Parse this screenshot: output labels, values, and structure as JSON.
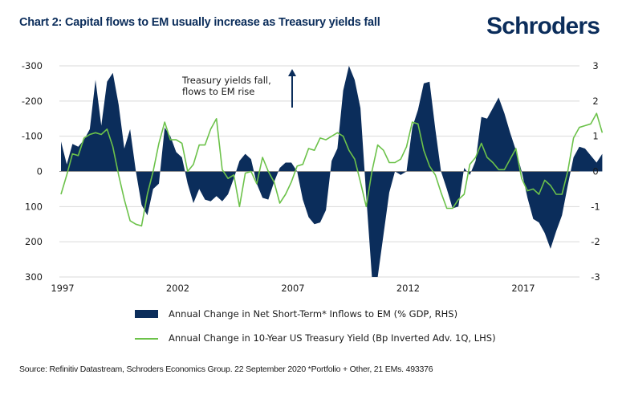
{
  "header": {
    "title": "Chart 2: Capital flows to EM usually increase as Treasury yields fall",
    "logo": "Schroders"
  },
  "source": "Source: Refinitiv Datastream, Schroders Economics Group. 22 September 2020 *Portfolio + Other, 21 EMs. 493376",
  "colors": {
    "area": "#0b2d5b",
    "line": "#6cc24a",
    "grid": "#d9d9d9",
    "title": "#0b2d5b"
  },
  "chart_data": {
    "type": "area+line",
    "title": "Chart 2: Capital flows to EM usually increase as Treasury yields fall",
    "x_ticks": [
      "1997",
      "2002",
      "2007",
      "2012",
      "2017"
    ],
    "x_range": [
      1997.0,
      2020.75
    ],
    "left_axis": {
      "label": "Bp (inverted)",
      "ticks": [
        "-300",
        "-200",
        "-100",
        "0",
        "100",
        "200",
        "300"
      ],
      "range": [
        -300,
        300
      ],
      "inverted": true
    },
    "right_axis": {
      "label": "% GDP",
      "ticks": [
        "3",
        "2",
        "1",
        "0",
        "-1",
        "-2",
        "-3"
      ],
      "range": [
        -3,
        3
      ]
    },
    "grid": true,
    "legend_position": "bottom",
    "annotation": {
      "lines": [
        "Treasury yields fall,",
        "flows to EM rise"
      ],
      "arrow": "up"
    },
    "series": [
      {
        "name": "Annual Change in Net Short-Term* Inflows to EM (% GDP, RHS)",
        "type": "area",
        "axis": "right",
        "points": [
          [
            1997.0,
            0.85
          ],
          [
            1997.25,
            0.2
          ],
          [
            1997.5,
            0.78
          ],
          [
            1997.75,
            0.7
          ],
          [
            1998.0,
            0.9
          ],
          [
            1998.25,
            1.2
          ],
          [
            1998.5,
            2.6
          ],
          [
            1998.75,
            1.3
          ],
          [
            1999.0,
            2.55
          ],
          [
            1999.25,
            2.8
          ],
          [
            1999.5,
            1.9
          ],
          [
            1999.75,
            0.65
          ],
          [
            2000.0,
            1.2
          ],
          [
            2000.25,
            0.0
          ],
          [
            2000.5,
            -0.95
          ],
          [
            2000.75,
            -1.25
          ],
          [
            2001.0,
            -0.5
          ],
          [
            2001.25,
            -0.35
          ],
          [
            2001.5,
            1.25
          ],
          [
            2001.75,
            1.0
          ],
          [
            2002.0,
            0.55
          ],
          [
            2002.25,
            0.4
          ],
          [
            2002.5,
            -0.35
          ],
          [
            2002.75,
            -0.9
          ],
          [
            2003.0,
            -0.5
          ],
          [
            2003.25,
            -0.8
          ],
          [
            2003.5,
            -0.85
          ],
          [
            2003.75,
            -0.7
          ],
          [
            2004.0,
            -0.85
          ],
          [
            2004.25,
            -0.65
          ],
          [
            2004.5,
            -0.2
          ],
          [
            2004.75,
            0.3
          ],
          [
            2005.0,
            0.5
          ],
          [
            2005.25,
            0.35
          ],
          [
            2005.5,
            -0.35
          ],
          [
            2005.75,
            -0.75
          ],
          [
            2006.0,
            -0.8
          ],
          [
            2006.25,
            -0.3
          ],
          [
            2006.5,
            0.1
          ],
          [
            2006.75,
            0.25
          ],
          [
            2007.0,
            0.25
          ],
          [
            2007.25,
            0.0
          ],
          [
            2007.5,
            -0.8
          ],
          [
            2007.75,
            -1.3
          ],
          [
            2008.0,
            -1.5
          ],
          [
            2008.25,
            -1.45
          ],
          [
            2008.5,
            -1.1
          ],
          [
            2008.75,
            0.3
          ],
          [
            2009.0,
            0.65
          ],
          [
            2009.25,
            2.3
          ],
          [
            2009.5,
            3.0
          ],
          [
            2009.75,
            2.6
          ],
          [
            2010.0,
            1.8
          ],
          [
            2010.25,
            -0.7
          ],
          [
            2010.5,
            -3.0
          ],
          [
            2010.75,
            -3.0
          ],
          [
            2011.0,
            -1.8
          ],
          [
            2011.25,
            -0.6
          ],
          [
            2011.5,
            0.0
          ],
          [
            2011.75,
            -0.1
          ],
          [
            2012.0,
            0.0
          ],
          [
            2012.25,
            1.25
          ],
          [
            2012.5,
            1.75
          ],
          [
            2012.75,
            2.5
          ],
          [
            2013.0,
            2.55
          ],
          [
            2013.25,
            1.2
          ],
          [
            2013.5,
            0.0
          ],
          [
            2013.75,
            -0.5
          ],
          [
            2014.0,
            -1.05
          ],
          [
            2014.25,
            -1.0
          ],
          [
            2014.5,
            0.1
          ],
          [
            2014.75,
            -0.1
          ],
          [
            2015.0,
            0.3
          ],
          [
            2015.25,
            1.55
          ],
          [
            2015.5,
            1.5
          ],
          [
            2015.75,
            1.8
          ],
          [
            2016.0,
            2.1
          ],
          [
            2016.25,
            1.65
          ],
          [
            2016.5,
            1.1
          ],
          [
            2016.75,
            0.6
          ],
          [
            2017.0,
            0.0
          ],
          [
            2017.25,
            -0.75
          ],
          [
            2017.5,
            -1.35
          ],
          [
            2017.75,
            -1.45
          ],
          [
            2018.0,
            -1.75
          ],
          [
            2018.25,
            -2.2
          ],
          [
            2018.5,
            -1.7
          ],
          [
            2018.75,
            -1.25
          ],
          [
            2019.0,
            -0.4
          ],
          [
            2019.25,
            0.4
          ],
          [
            2019.5,
            0.7
          ],
          [
            2019.75,
            0.65
          ],
          [
            2020.0,
            0.45
          ],
          [
            2020.25,
            0.25
          ],
          [
            2020.5,
            0.5
          ]
        ]
      },
      {
        "name": "Annual Change in 10-Year US Treasury Yield (Bp Inverted Adv. 1Q, LHS)",
        "type": "line",
        "axis": "left",
        "points": [
          [
            1997.0,
            65
          ],
          [
            1997.25,
            10
          ],
          [
            1997.5,
            -50
          ],
          [
            1997.75,
            -45
          ],
          [
            1998.0,
            -95
          ],
          [
            1998.25,
            -105
          ],
          [
            1998.5,
            -110
          ],
          [
            1998.75,
            -105
          ],
          [
            1999.0,
            -120
          ],
          [
            1999.25,
            -70
          ],
          [
            1999.5,
            10
          ],
          [
            1999.75,
            80
          ],
          [
            2000.0,
            140
          ],
          [
            2000.25,
            150
          ],
          [
            2000.5,
            155
          ],
          [
            2000.75,
            65
          ],
          [
            2001.0,
            0
          ],
          [
            2001.25,
            -80
          ],
          [
            2001.5,
            -140
          ],
          [
            2001.75,
            -90
          ],
          [
            2002.0,
            -90
          ],
          [
            2002.25,
            -80
          ],
          [
            2002.5,
            0
          ],
          [
            2002.75,
            -20
          ],
          [
            2003.0,
            -75
          ],
          [
            2003.25,
            -75
          ],
          [
            2003.5,
            -120
          ],
          [
            2003.75,
            -150
          ],
          [
            2004.0,
            -5
          ],
          [
            2004.25,
            20
          ],
          [
            2004.5,
            10
          ],
          [
            2004.75,
            100
          ],
          [
            2005.0,
            5
          ],
          [
            2005.25,
            0
          ],
          [
            2005.5,
            35
          ],
          [
            2005.75,
            -40
          ],
          [
            2006.0,
            0
          ],
          [
            2006.25,
            30
          ],
          [
            2006.5,
            90
          ],
          [
            2006.75,
            65
          ],
          [
            2007.0,
            30
          ],
          [
            2007.25,
            -15
          ],
          [
            2007.5,
            -20
          ],
          [
            2007.75,
            -65
          ],
          [
            2008.0,
            -60
          ],
          [
            2008.25,
            -95
          ],
          [
            2008.5,
            -90
          ],
          [
            2008.75,
            -100
          ],
          [
            2009.0,
            -110
          ],
          [
            2009.25,
            -100
          ],
          [
            2009.5,
            -60
          ],
          [
            2009.75,
            -35
          ],
          [
            2010.0,
            30
          ],
          [
            2010.25,
            100
          ],
          [
            2010.5,
            0
          ],
          [
            2010.75,
            -75
          ],
          [
            2011.0,
            -60
          ],
          [
            2011.25,
            -25
          ],
          [
            2011.5,
            -25
          ],
          [
            2011.75,
            -35
          ],
          [
            2012.0,
            -70
          ],
          [
            2012.25,
            -140
          ],
          [
            2012.5,
            -135
          ],
          [
            2012.75,
            -60
          ],
          [
            2013.0,
            -15
          ],
          [
            2013.25,
            10
          ],
          [
            2013.5,
            60
          ],
          [
            2013.75,
            105
          ],
          [
            2014.0,
            105
          ],
          [
            2014.25,
            80
          ],
          [
            2014.5,
            65
          ],
          [
            2014.75,
            -20
          ],
          [
            2015.0,
            -40
          ],
          [
            2015.25,
            -80
          ],
          [
            2015.5,
            -40
          ],
          [
            2015.75,
            -25
          ],
          [
            2016.0,
            -5
          ],
          [
            2016.25,
            -5
          ],
          [
            2016.5,
            -35
          ],
          [
            2016.75,
            -65
          ],
          [
            2017.0,
            20
          ],
          [
            2017.25,
            55
          ],
          [
            2017.5,
            50
          ],
          [
            2017.75,
            65
          ],
          [
            2018.0,
            25
          ],
          [
            2018.25,
            40
          ],
          [
            2018.5,
            65
          ],
          [
            2018.75,
            65
          ],
          [
            2019.0,
            0
          ],
          [
            2019.25,
            -95
          ],
          [
            2019.5,
            -125
          ],
          [
            2019.75,
            -130
          ],
          [
            2020.0,
            -135
          ],
          [
            2020.25,
            -165
          ],
          [
            2020.5,
            -110
          ]
        ]
      }
    ]
  }
}
